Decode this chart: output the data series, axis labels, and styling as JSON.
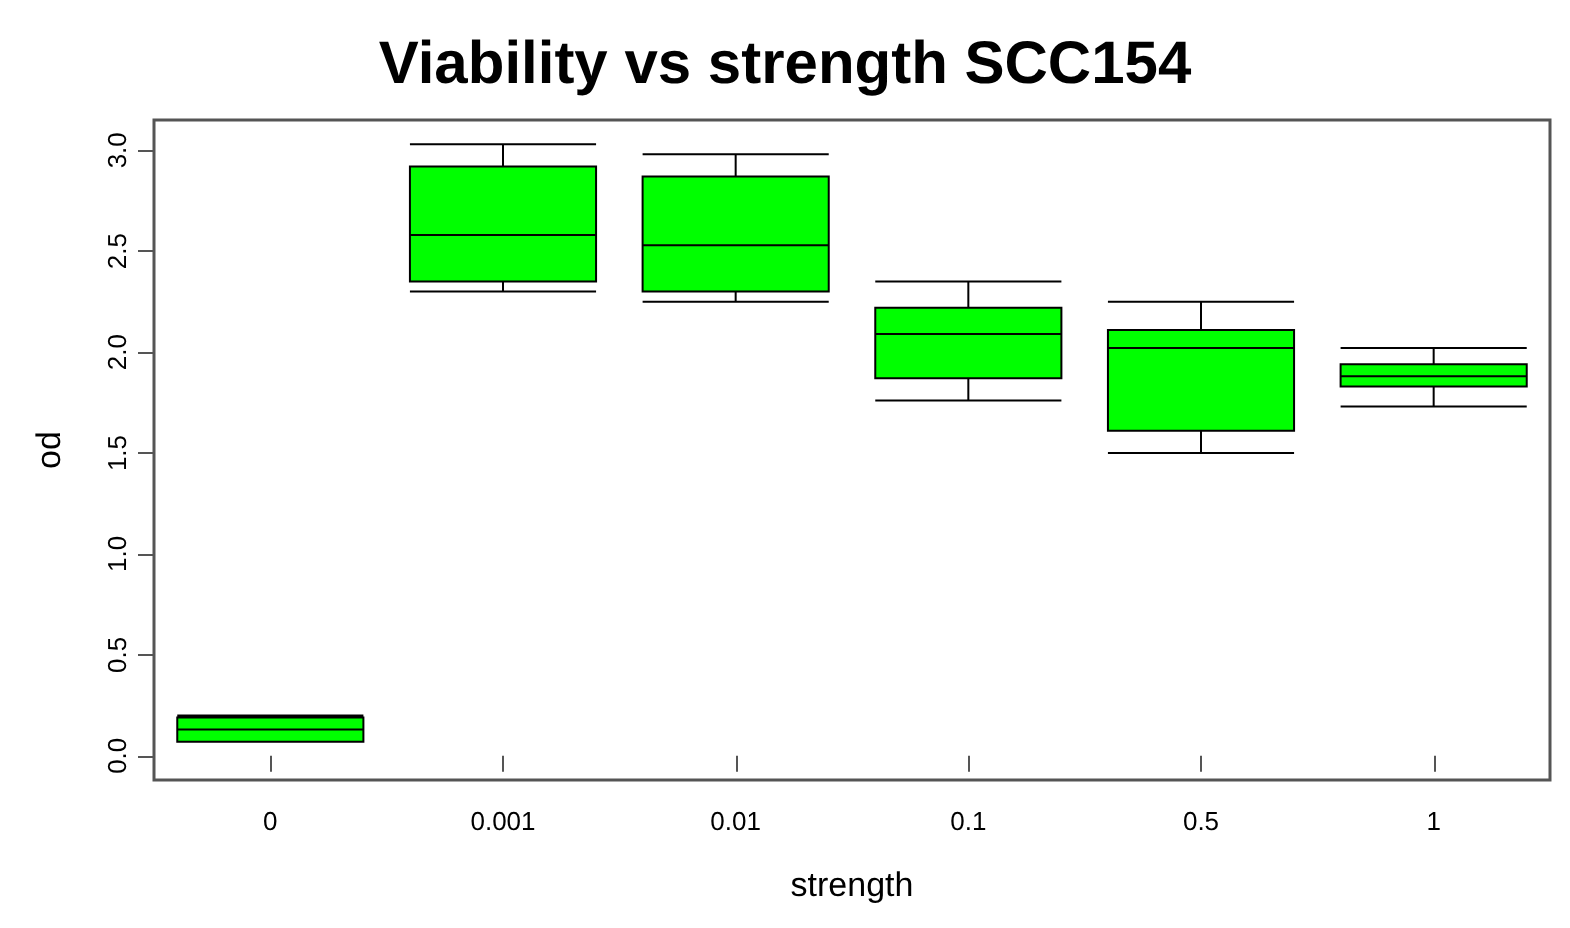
{
  "chart_data": {
    "type": "box",
    "title": "Viability vs strength SCC154",
    "xlabel": "strength",
    "ylabel": "od",
    "categories": [
      "0",
      "0.001",
      "0.01",
      "0.1",
      "0.5",
      "1"
    ],
    "color": "#00ff00",
    "boxes": [
      {
        "low": 0.07,
        "q1": 0.07,
        "median": 0.13,
        "q3": 0.19,
        "high": 0.2
      },
      {
        "low": 2.3,
        "q1": 2.35,
        "median": 2.58,
        "q3": 2.92,
        "high": 3.03
      },
      {
        "low": 2.25,
        "q1": 2.3,
        "median": 2.53,
        "q3": 2.87,
        "high": 2.98
      },
      {
        "low": 1.76,
        "q1": 1.87,
        "median": 2.09,
        "q3": 2.22,
        "high": 2.35
      },
      {
        "low": 1.5,
        "q1": 1.61,
        "median": 2.02,
        "q3": 2.11,
        "high": 2.25
      },
      {
        "low": 1.73,
        "q1": 1.83,
        "median": 1.88,
        "q3": 1.94,
        "high": 2.02
      }
    ],
    "ylim": [
      -0.12,
      3.15
    ],
    "yticks": [
      {
        "value": 0,
        "label": "0.0"
      },
      0.5,
      {
        "value": 1,
        "label": "1.0"
      },
      1.5,
      {
        "value": 2,
        "label": "2.0"
      },
      2.5,
      {
        "value": 3,
        "label": "3.0"
      }
    ],
    "grid": false
  }
}
